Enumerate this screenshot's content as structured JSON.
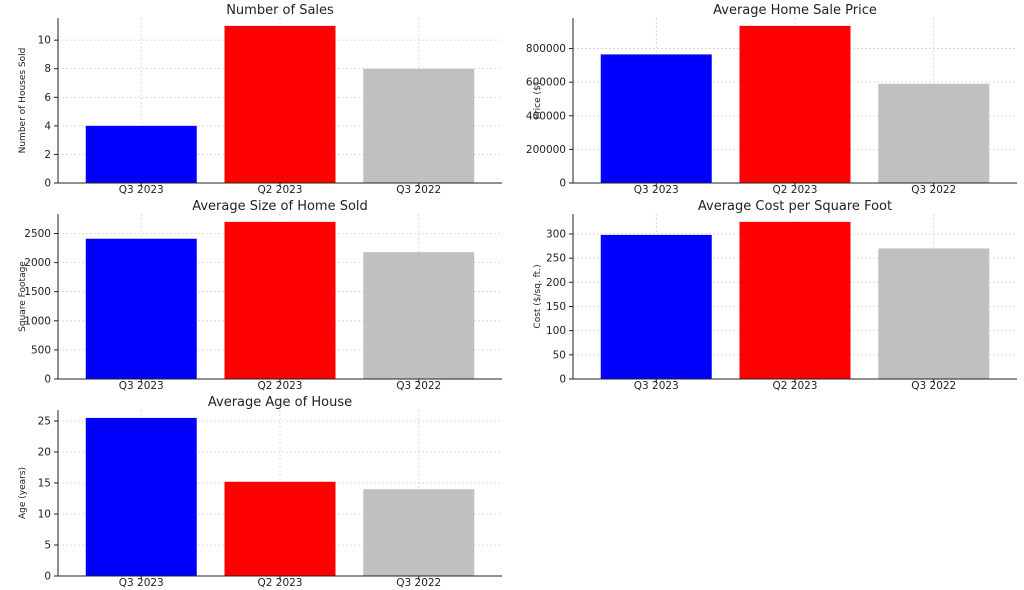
{
  "chart_data": [
    {
      "type": "bar",
      "title": "Number of Sales",
      "ylabel": "Number of Houses Sold",
      "categories": [
        "Q3 2023",
        "Q2 2023",
        "Q3 2022"
      ],
      "values": [
        4,
        11,
        8
      ],
      "colors": [
        "#0000ff",
        "#ff0000",
        "#c0c0c0"
      ],
      "ylim": [
        0,
        11.55
      ],
      "yticks": [
        0,
        2,
        4,
        6,
        8,
        10
      ],
      "grid": true
    },
    {
      "type": "bar",
      "title": "Average Home Sale Price",
      "ylabel": "Price ($)",
      "categories": [
        "Q3 2023",
        "Q2 2023",
        "Q3 2022"
      ],
      "values": [
        765000,
        935000,
        590000
      ],
      "colors": [
        "#0000ff",
        "#ff0000",
        "#c0c0c0"
      ],
      "ylim": [
        0,
        981750
      ],
      "yticks": [
        0,
        200000,
        400000,
        600000,
        800000
      ],
      "grid": true
    },
    {
      "type": "bar",
      "title": "Average Size of Home Sold",
      "ylabel": "Square Footage",
      "categories": [
        "Q3 2023",
        "Q2 2023",
        "Q3 2022"
      ],
      "values": [
        2410,
        2700,
        2180
      ],
      "colors": [
        "#0000ff",
        "#ff0000",
        "#c0c0c0"
      ],
      "ylim": [
        0,
        2835
      ],
      "yticks": [
        0,
        500,
        1000,
        1500,
        2000,
        2500
      ],
      "grid": true
    },
    {
      "type": "bar",
      "title": "Average Cost per Square Foot",
      "ylabel": "Cost ($/sq. ft.)",
      "categories": [
        "Q3 2023",
        "Q2 2023",
        "Q3 2022"
      ],
      "values": [
        298,
        325,
        270
      ],
      "colors": [
        "#0000ff",
        "#ff0000",
        "#c0c0c0"
      ],
      "ylim": [
        0,
        341.25
      ],
      "yticks": [
        0,
        50,
        100,
        150,
        200,
        250,
        300
      ],
      "grid": true
    },
    {
      "type": "bar",
      "title": "Average Age of House",
      "ylabel": "Age (years)",
      "categories": [
        "Q3 2023",
        "Q2 2023",
        "Q3 2022"
      ],
      "values": [
        25.5,
        15.2,
        14
      ],
      "colors": [
        "#0000ff",
        "#ff0000",
        "#c0c0c0"
      ],
      "ylim": [
        0,
        26.775
      ],
      "yticks": [
        0,
        5,
        10,
        15,
        20,
        25
      ],
      "grid": true
    }
  ]
}
